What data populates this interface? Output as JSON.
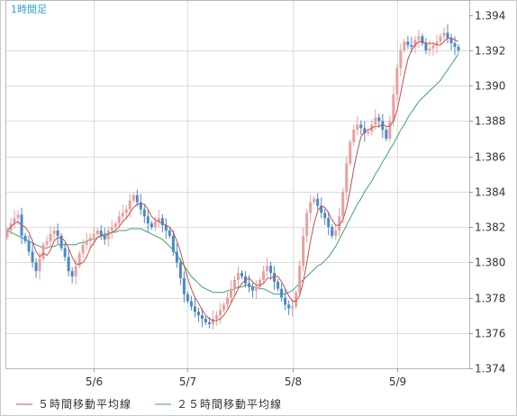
{
  "chart_data": {
    "type": "candlestick",
    "title": "1時間足",
    "x_tick_labels": [
      "5/6",
      "5/7",
      "5/8",
      "5/9"
    ],
    "y_tick_labels": [
      "1.394",
      "1.392",
      "1.390",
      "1.388",
      "1.386",
      "1.384",
      "1.382",
      "1.380",
      "1.378",
      "1.376",
      "1.374"
    ],
    "ylim": [
      1.374,
      1.3948
    ],
    "grid": true,
    "legend_position": "bottom-left",
    "colors": {
      "up": "#e8a0a0",
      "down": "#4a88c8",
      "ma5": "#c05050",
      "ma25": "#40a070"
    },
    "series": [
      {
        "name": "５時間移動平均線",
        "color": "#c05050"
      },
      {
        "name": "２５時間移動平均線",
        "color": "#40a070"
      }
    ],
    "closes": [
      1.3818,
      1.3822,
      1.3825,
      1.3827,
      1.3815,
      1.3812,
      1.3806,
      1.38,
      1.3795,
      1.3802,
      1.381,
      1.3812,
      1.3816,
      1.3818,
      1.3815,
      1.3808,
      1.3803,
      1.3795,
      1.3792,
      1.3798,
      1.3805,
      1.381,
      1.3812,
      1.3814,
      1.3816,
      1.3818,
      1.3815,
      1.3813,
      1.3818,
      1.382,
      1.3822,
      1.3826,
      1.3828,
      1.383,
      1.3835,
      1.3838,
      1.3834,
      1.383,
      1.3826,
      1.3822,
      1.382,
      1.3823,
      1.3825,
      1.3821,
      1.3818,
      1.3815,
      1.3806,
      1.38,
      1.3791,
      1.3782,
      1.3778,
      1.3775,
      1.3772,
      1.377,
      1.3768,
      1.3766,
      1.3765,
      1.3768,
      1.377,
      1.3773,
      1.3776,
      1.378,
      1.3785,
      1.379,
      1.3794,
      1.3792,
      1.3788,
      1.3786,
      1.3784,
      1.3786,
      1.379,
      1.3795,
      1.3798,
      1.3794,
      1.3789,
      1.3785,
      1.378,
      1.3776,
      1.3774,
      1.3775,
      1.3783,
      1.3798,
      1.3815,
      1.3828,
      1.3834,
      1.3836,
      1.3832,
      1.3828,
      1.3825,
      1.382,
      1.3815,
      1.3818,
      1.3826,
      1.384,
      1.3856,
      1.3868,
      1.3875,
      1.3878,
      1.3876,
      1.3873,
      1.3874,
      1.3878,
      1.3882,
      1.388,
      1.3875,
      1.387,
      1.388,
      1.3895,
      1.391,
      1.392,
      1.3925,
      1.3923,
      1.3922,
      1.3926,
      1.3928,
      1.3924,
      1.392,
      1.3921,
      1.3923,
      1.3925,
      1.3928,
      1.393,
      1.3927,
      1.3924,
      1.3922,
      1.392
    ],
    "ma5": [
      1.3818,
      1.382,
      1.3822,
      1.3823,
      1.3821,
      1.382,
      1.3817,
      1.3812,
      1.3806,
      1.3803,
      1.3805,
      1.3804,
      1.3807,
      1.3812,
      1.3814,
      1.3814,
      1.3812,
      1.3808,
      1.3803,
      1.3799,
      1.3799,
      1.38,
      1.3803,
      1.3808,
      1.3811,
      1.3814,
      1.3815,
      1.3815,
      1.3816,
      1.3817,
      1.3818,
      1.382,
      1.3823,
      1.3825,
      1.3828,
      1.3831,
      1.3833,
      1.3833,
      1.3833,
      1.383,
      1.3826,
      1.3824,
      1.3823,
      1.3822,
      1.3821,
      1.382,
      1.3817,
      1.3812,
      1.3806,
      1.3798,
      1.3791,
      1.3785,
      1.378,
      1.3777,
      1.3773,
      1.377,
      1.3768,
      1.3767,
      1.3767,
      1.3768,
      1.377,
      1.3773,
      1.3777,
      1.3781,
      1.3785,
      1.3788,
      1.379,
      1.3791,
      1.3789,
      1.3787,
      1.3787,
      1.3788,
      1.3791,
      1.3791,
      1.3792,
      1.3792,
      1.3789,
      1.3785,
      1.3781,
      1.3778,
      1.3778,
      1.3781,
      1.3789,
      1.38,
      1.3812,
      1.3822,
      1.3829,
      1.3832,
      1.3831,
      1.3828,
      1.3824,
      1.3821,
      1.3821,
      1.3824,
      1.3831,
      1.3841,
      1.3853,
      1.3863,
      1.3871,
      1.3874,
      1.3875,
      1.3876,
      1.3877,
      1.3877,
      1.3878,
      1.3877,
      1.3877,
      1.388,
      1.3886,
      1.3896,
      1.3906,
      1.3915,
      1.392,
      1.3923,
      1.3925,
      1.3925,
      1.3924,
      1.3924,
      1.3924,
      1.3923,
      1.3923,
      1.3925,
      1.3927,
      1.3927,
      1.3926,
      1.3925
    ],
    "ma25": [
      1.3818,
      1.3817,
      1.3816,
      1.3815,
      1.3814,
      1.3813,
      1.3812,
      1.3811,
      1.381,
      1.3809,
      1.3808,
      1.3808,
      1.3809,
      1.3809,
      1.381,
      1.381,
      1.381,
      1.381,
      1.381,
      1.381,
      1.3811,
      1.3811,
      1.3812,
      1.3813,
      1.3813,
      1.3814,
      1.3815,
      1.3816,
      1.3816,
      1.3817,
      1.3817,
      1.3818,
      1.3818,
      1.3818,
      1.3819,
      1.3819,
      1.3819,
      1.3819,
      1.3818,
      1.3817,
      1.3816,
      1.3815,
      1.3814,
      1.3813,
      1.3811,
      1.3809,
      1.3807,
      1.3804,
      1.3801,
      1.3798,
      1.3795,
      1.3792,
      1.379,
      1.3788,
      1.3786,
      1.3785,
      1.3784,
      1.3783,
      1.3783,
      1.3783,
      1.3783,
      1.3784,
      1.3784,
      1.3785,
      1.3786,
      1.3786,
      1.3787,
      1.3787,
      1.3786,
      1.3786,
      1.3785,
      1.3785,
      1.3784,
      1.3783,
      1.3782,
      1.3782,
      1.3782,
      1.3782,
      1.3783,
      1.3784,
      1.3786,
      1.3788,
      1.379,
      1.3792,
      1.3794,
      1.3796,
      1.3798,
      1.3799,
      1.3801,
      1.3803,
      1.3806,
      1.3809,
      1.3813,
      1.3817,
      1.3821,
      1.3825,
      1.3829,
      1.3833,
      1.3836,
      1.384,
      1.3843,
      1.3846,
      1.385,
      1.3853,
      1.3857,
      1.386,
      1.3864,
      1.3867,
      1.3871,
      1.3875,
      1.3878,
      1.3882,
      1.3885,
      1.3888,
      1.3891,
      1.3893,
      1.3895,
      1.3897,
      1.3899,
      1.3901,
      1.3903,
      1.3906,
      1.3909,
      1.3912,
      1.3915,
      1.3918
    ]
  }
}
